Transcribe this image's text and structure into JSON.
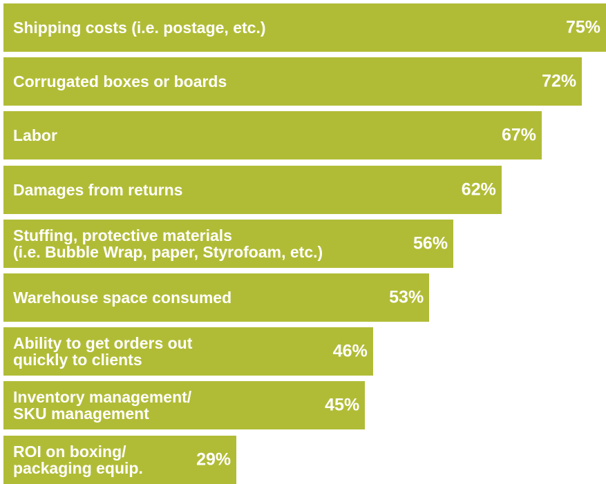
{
  "chart_data": {
    "type": "bar",
    "orientation": "horizontal",
    "color": "#b1bc36",
    "categories": [
      "Shipping costs (i.e. postage, etc.)",
      "Corrugated boxes or boards",
      "Labor",
      "Damages from returns",
      "Stuffing, protective materials\n(i.e. Bubble Wrap, paper, Styrofoam, etc.)",
      "Warehouse space consumed",
      "Ability to get orders out\nquickly to clients",
      "Inventory management/\nSKU management",
      "ROI on boxing/\npackaging equip."
    ],
    "values": [
      75,
      72,
      67,
      62,
      56,
      53,
      46,
      45,
      29
    ],
    "value_labels": [
      "75%",
      "72%",
      "67%",
      "62%",
      "56%",
      "53%",
      "46%",
      "45%",
      "29%"
    ]
  }
}
